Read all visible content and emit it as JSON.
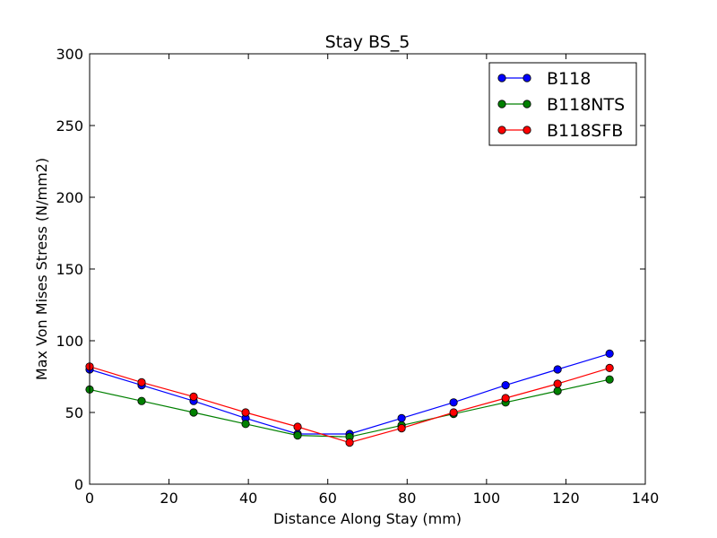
{
  "chart_data": {
    "type": "line",
    "title": "Stay BS_5",
    "xlabel": "Distance Along Stay (mm)",
    "ylabel": "Max Von Mises Stress (N/mm2)",
    "xlim": [
      0,
      140
    ],
    "ylim": [
      0,
      300
    ],
    "xticks": [
      0,
      20,
      40,
      60,
      80,
      100,
      120,
      140
    ],
    "yticks": [
      0,
      50,
      100,
      150,
      200,
      250,
      300
    ],
    "grid": false,
    "legend_position": "top-right",
    "x": [
      0,
      13.1,
      26.2,
      39.3,
      52.4,
      65.5,
      78.6,
      91.7,
      104.8,
      117.9,
      131.0
    ],
    "series": [
      {
        "name": "B118",
        "color": "#0000ff",
        "values": [
          80,
          69,
          58,
          46,
          35,
          35,
          46,
          57,
          69,
          80,
          91
        ]
      },
      {
        "name": "B118NTS",
        "color": "#008000",
        "values": [
          66,
          58,
          50,
          42,
          34,
          33,
          41,
          49,
          57,
          65,
          73
        ]
      },
      {
        "name": "B118SFB",
        "color": "#ff0000",
        "values": [
          82,
          71,
          61,
          50,
          40,
          29,
          39,
          50,
          60,
          70,
          81
        ]
      }
    ]
  }
}
